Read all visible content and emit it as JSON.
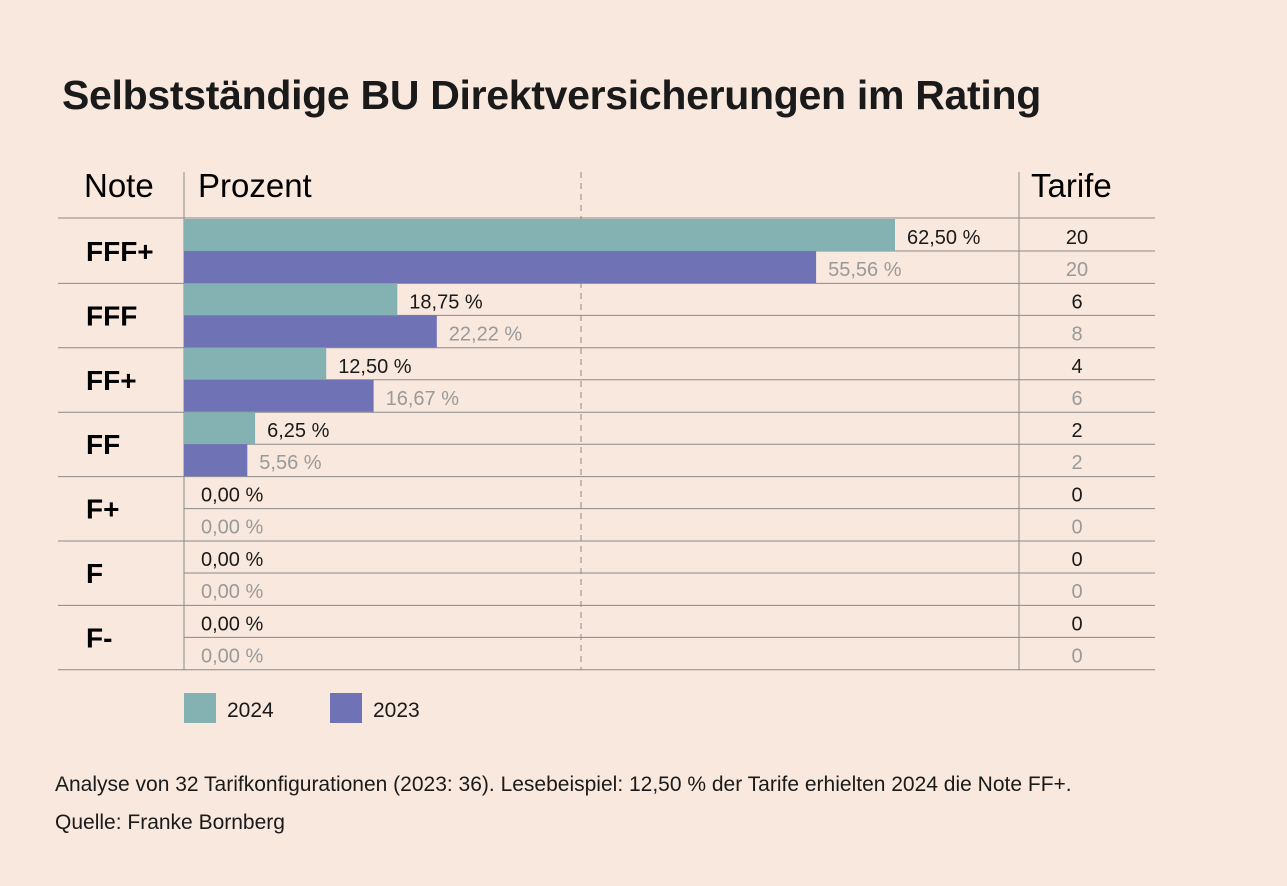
{
  "title": "Selbstständige BU Direktversicherungen im Rating",
  "headers": {
    "note": "Note",
    "prozent": "Prozent",
    "tarife": "Tarife"
  },
  "colors": {
    "series_2024": "#84b2b3",
    "series_2023": "#7072b6",
    "background": "#f8e8de"
  },
  "chart_data": {
    "type": "bar",
    "orientation": "horizontal",
    "categories": [
      "FFF+",
      "FFF",
      "FF+",
      "FF",
      "F+",
      "F",
      "F-"
    ],
    "series": [
      {
        "name": "2024",
        "values": [
          62.5,
          18.75,
          12.5,
          6.25,
          0.0,
          0.0,
          0.0
        ],
        "labels": [
          "62,50 %",
          "18,75 %",
          "12,50 %",
          "6,25 %",
          "0,00 %",
          "0,00 %",
          "0,00 %"
        ],
        "tarife": [
          "20",
          "6",
          "4",
          "2",
          "0",
          "0",
          "0"
        ]
      },
      {
        "name": "2023",
        "values": [
          55.56,
          22.22,
          16.67,
          5.56,
          0.0,
          0.0,
          0.0
        ],
        "labels": [
          "55,56 %",
          "22,22 %",
          "16,67 %",
          "5,56 %",
          "0,00 %",
          "0,00 %",
          "0,00 %"
        ],
        "tarife": [
          "20",
          "8",
          "6",
          "2",
          "0",
          "0",
          "0"
        ]
      }
    ],
    "xlim": [
      0,
      62.5
    ],
    "legend": [
      "2024",
      "2023"
    ],
    "legend_position": "bottom-left"
  },
  "footnote": {
    "analysis": "Analyse von 32 Tarifkonfigurationen (2023: 36). Lesebeispiel: 12,50 % der Tarife erhielten 2024 die Note FF+.",
    "source": "Quelle: Franke Bornberg"
  }
}
